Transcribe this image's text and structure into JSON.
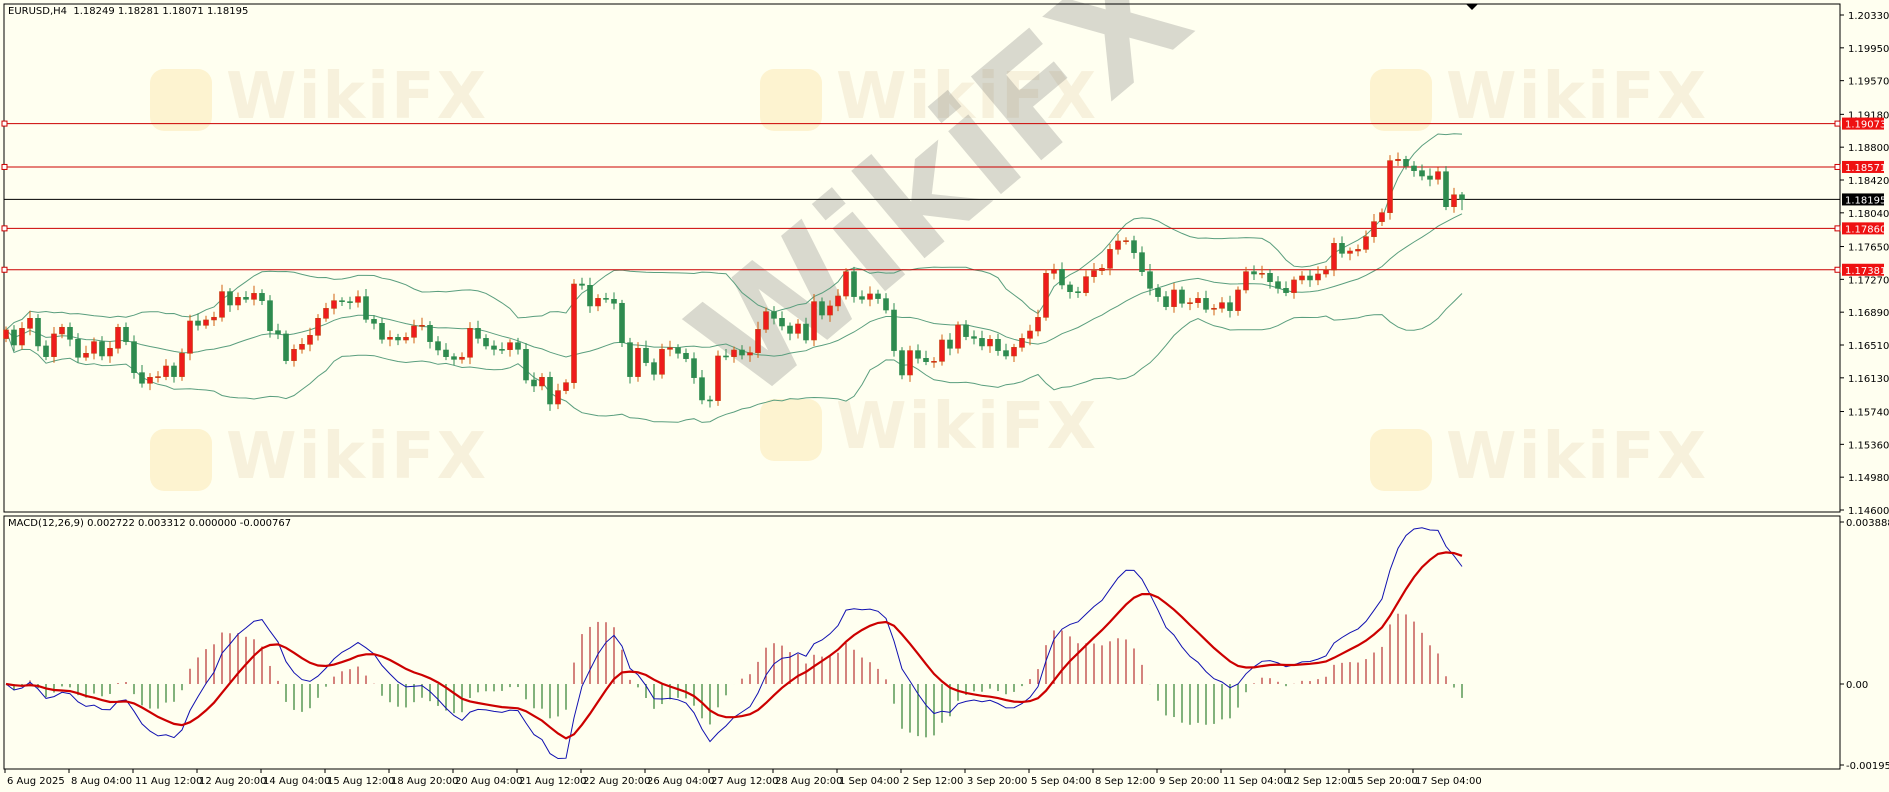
{
  "header": {
    "symbol_line": "EURUSD,H4  1.18249 1.18281 1.18071 1.18195",
    "macd_line": "MACD(12,26,9) 0.002722 0.003312 0.000000 -0.000767"
  },
  "watermark": "WikiFX",
  "colors": {
    "background": "#fffff0",
    "bull": "#ee1c1c",
    "bear": "#2e8b4f",
    "bands": "#5a9e7e",
    "macd": "#1010b0",
    "signal": "#cc0000",
    "level": "#cc0000",
    "current": "#000000"
  },
  "chart_data": [
    {
      "type": "candlestick",
      "symbol": "EURUSD",
      "timeframe": "H4",
      "last_bar": {
        "open": 1.18249,
        "high": 1.18281,
        "low": 1.18071,
        "close": 1.18195
      },
      "ylim": [
        1.146,
        1.2033
      ],
      "y_ticks": [
        "1.20330",
        "1.19950",
        "1.19570",
        "1.19180",
        "1.18800",
        "1.18420",
        "1.18040",
        "1.17650",
        "1.17270",
        "1.16890",
        "1.16510",
        "1.16130",
        "1.15740",
        "1.15360",
        "1.14980",
        "1.14600"
      ],
      "x_ticks": [
        "6 Aug 2025",
        "8 Aug 04:00",
        "11 Aug 12:00",
        "12 Aug 20:00",
        "14 Aug 04:00",
        "15 Aug 12:00",
        "18 Aug 20:00",
        "20 Aug 04:00",
        "21 Aug 12:00",
        "22 Aug 20:00",
        "26 Aug 04:00",
        "27 Aug 12:00",
        "28 Aug 20:00",
        "1 Sep 04:00",
        "2 Sep 12:00",
        "3 Sep 20:00",
        "5 Sep 04:00",
        "8 Sep 12:00",
        "9 Sep 20:00",
        "11 Sep 04:00",
        "12 Sep 12:00",
        "15 Sep 20:00",
        "17 Sep 04:00"
      ],
      "horizontal_levels": [
        "1.19073",
        "1.18571",
        "1.17860",
        "1.17381"
      ],
      "current_price": "1.18195",
      "indicator": "Bollinger Bands",
      "close": [
        1.16684,
        1.1651,
        1.16703,
        1.16819,
        1.16499,
        1.16375,
        1.16638,
        1.16715,
        1.16576,
        1.16368,
        1.16414,
        1.16549,
        1.16383,
        1.16472,
        1.16715,
        1.16549,
        1.1619,
        1.16067,
        1.16136,
        1.16144,
        1.16267,
        1.16144,
        1.16414,
        1.16788,
        1.16738,
        1.168,
        1.16831,
        1.17128,
        1.16973,
        1.17062,
        1.17039,
        1.17108,
        1.17023,
        1.16676,
        1.16638,
        1.16329,
        1.1646,
        1.16518,
        1.16622,
        1.16819,
        1.16934,
        1.17023,
        1.17012,
        1.17004,
        1.1707,
        1.16807,
        1.16761,
        1.16576,
        1.16599,
        1.16568,
        1.16599,
        1.1673,
        1.16738,
        1.16549,
        1.16452,
        1.16375,
        1.16344,
        1.16368,
        1.16703,
        1.16587,
        1.16499,
        1.1646,
        1.16456,
        1.16537,
        1.1646,
        1.16105,
        1.16036,
        1.16136,
        1.15827,
        1.15982,
        1.16074,
        1.17216,
        1.17201,
        1.16962,
        1.1705,
        1.17039,
        1.16993,
        1.16537,
        1.16144,
        1.16472,
        1.16306,
        1.16171,
        1.1646,
        1.16479,
        1.16414,
        1.16352,
        1.16132,
        1.15874,
        1.15866,
        1.16383,
        1.16375,
        1.16452,
        1.16394,
        1.16421,
        1.16691,
        1.16896,
        1.16819,
        1.1673,
        1.16645,
        1.16753,
        1.16568,
        1.17012,
        1.16857,
        1.16962,
        1.17077,
        1.17359,
        1.1707,
        1.17039,
        1.17101,
        1.17047,
        1.16915,
        1.16445,
        1.16163,
        1.16445,
        1.16356,
        1.16317,
        1.16321,
        1.16568,
        1.16472,
        1.16742,
        1.16607,
        1.16587,
        1.16499,
        1.16576,
        1.16445,
        1.16383,
        1.16483,
        1.16587,
        1.16672,
        1.1683,
        1.1734,
        1.17386,
        1.17205,
        1.17127,
        1.17116,
        1.17301,
        1.17371,
        1.17398,
        1.17617,
        1.17714,
        1.17718,
        1.17579,
        1.17359,
        1.17166,
        1.1707,
        1.16954,
        1.17147,
        1.16993,
        1.17,
        1.1705,
        1.16923,
        1.16935,
        1.17,
        1.16908,
        1.17147,
        1.17359,
        1.17332,
        1.1734,
        1.17243,
        1.17166,
        1.17116,
        1.17263,
        1.17309,
        1.17263,
        1.17332,
        1.17378,
        1.17687,
        1.17571,
        1.17598,
        1.17617,
        1.17764,
        1.17938,
        1.18042,
        1.18644,
        1.18659,
        1.18582,
        1.18528,
        1.18466,
        1.18428,
        1.18516,
        1.18111,
        1.18249,
        1.18195
      ]
    },
    {
      "type": "line",
      "title": "MACD(12,26,9)",
      "values": {
        "macd": 0.002722,
        "signal": 0.003312,
        "value3": 0.0,
        "histogram": -0.000767
      },
      "ylim": [
        -0.001955,
        0.003888
      ],
      "y_ticks": [
        "0.003888",
        "0.00",
        "-0.001955"
      ]
    }
  ]
}
